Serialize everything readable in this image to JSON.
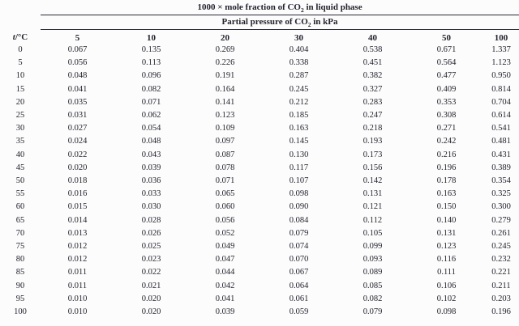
{
  "page": {
    "background_color": "#fcfcfc",
    "ink_color": "#23232e",
    "rule_color": "#2a2a35"
  },
  "table": {
    "title": {
      "pre": "1000 × mole fraction of CO",
      "sub": "2",
      "post": " in liquid phase"
    },
    "subtitle": {
      "pre": "Partial pressure of CO",
      "sub": "2",
      "post": " in kPa"
    },
    "temp_header": {
      "italic": "t",
      "rest": "/°C"
    },
    "pressure_columns": [
      "5",
      "10",
      "20",
      "30",
      "40",
      "50",
      "100"
    ],
    "rows": [
      {
        "t": "0",
        "values": [
          "0.067",
          "0.135",
          "0.269",
          "0.404",
          "0.538",
          "0.671",
          "1.337"
        ]
      },
      {
        "t": "5",
        "values": [
          "0.056",
          "0.113",
          "0.226",
          "0.338",
          "0.451",
          "0.564",
          "1.123"
        ]
      },
      {
        "t": "10",
        "values": [
          "0.048",
          "0.096",
          "0.191",
          "0.287",
          "0.382",
          "0.477",
          "0.950"
        ]
      },
      {
        "t": "15",
        "values": [
          "0.041",
          "0.082",
          "0.164",
          "0.245",
          "0.327",
          "0.409",
          "0.814"
        ]
      },
      {
        "t": "20",
        "values": [
          "0.035",
          "0.071",
          "0.141",
          "0.212",
          "0.283",
          "0.353",
          "0.704"
        ]
      },
      {
        "t": "25",
        "values": [
          "0.031",
          "0.062",
          "0.123",
          "0.185",
          "0.247",
          "0.308",
          "0.614"
        ]
      },
      {
        "t": "30",
        "values": [
          "0.027",
          "0.054",
          "0.109",
          "0.163",
          "0.218",
          "0.271",
          "0.541"
        ]
      },
      {
        "t": "35",
        "values": [
          "0.024",
          "0.048",
          "0.097",
          "0.145",
          "0.193",
          "0.242",
          "0.481"
        ]
      },
      {
        "t": "40",
        "values": [
          "0.022",
          "0.043",
          "0.087",
          "0.130",
          "0.173",
          "0.216",
          "0.431"
        ]
      },
      {
        "t": "45",
        "values": [
          "0.020",
          "0.039",
          "0.078",
          "0.117",
          "0.156",
          "0.196",
          "0.389"
        ]
      },
      {
        "t": "50",
        "values": [
          "0.018",
          "0.036",
          "0.071",
          "0.107",
          "0.142",
          "0.178",
          "0.354"
        ]
      },
      {
        "t": "55",
        "values": [
          "0.016",
          "0.033",
          "0.065",
          "0.098",
          "0.131",
          "0.163",
          "0.325"
        ]
      },
      {
        "t": "60",
        "values": [
          "0.015",
          "0.030",
          "0.060",
          "0.090",
          "0.121",
          "0.150",
          "0.300"
        ]
      },
      {
        "t": "65",
        "values": [
          "0.014",
          "0.028",
          "0.056",
          "0.084",
          "0.112",
          "0.140",
          "0.279"
        ]
      },
      {
        "t": "70",
        "values": [
          "0.013",
          "0.026",
          "0.052",
          "0.079",
          "0.105",
          "0.131",
          "0.261"
        ]
      },
      {
        "t": "75",
        "values": [
          "0.012",
          "0.025",
          "0.049",
          "0.074",
          "0.099",
          "0.123",
          "0.245"
        ]
      },
      {
        "t": "80",
        "values": [
          "0.012",
          "0.023",
          "0.047",
          "0.070",
          "0.093",
          "0.116",
          "0.232"
        ]
      },
      {
        "t": "85",
        "values": [
          "0.011",
          "0.022",
          "0.044",
          "0.067",
          "0.089",
          "0.111",
          "0.221"
        ]
      },
      {
        "t": "90",
        "values": [
          "0.011",
          "0.021",
          "0.042",
          "0.064",
          "0.085",
          "0.106",
          "0.211"
        ]
      },
      {
        "t": "95",
        "values": [
          "0.010",
          "0.020",
          "0.041",
          "0.061",
          "0.082",
          "0.102",
          "0.203"
        ]
      },
      {
        "t": "100",
        "values": [
          "0.010",
          "0.020",
          "0.039",
          "0.059",
          "0.079",
          "0.098",
          "0.196"
        ]
      }
    ]
  }
}
